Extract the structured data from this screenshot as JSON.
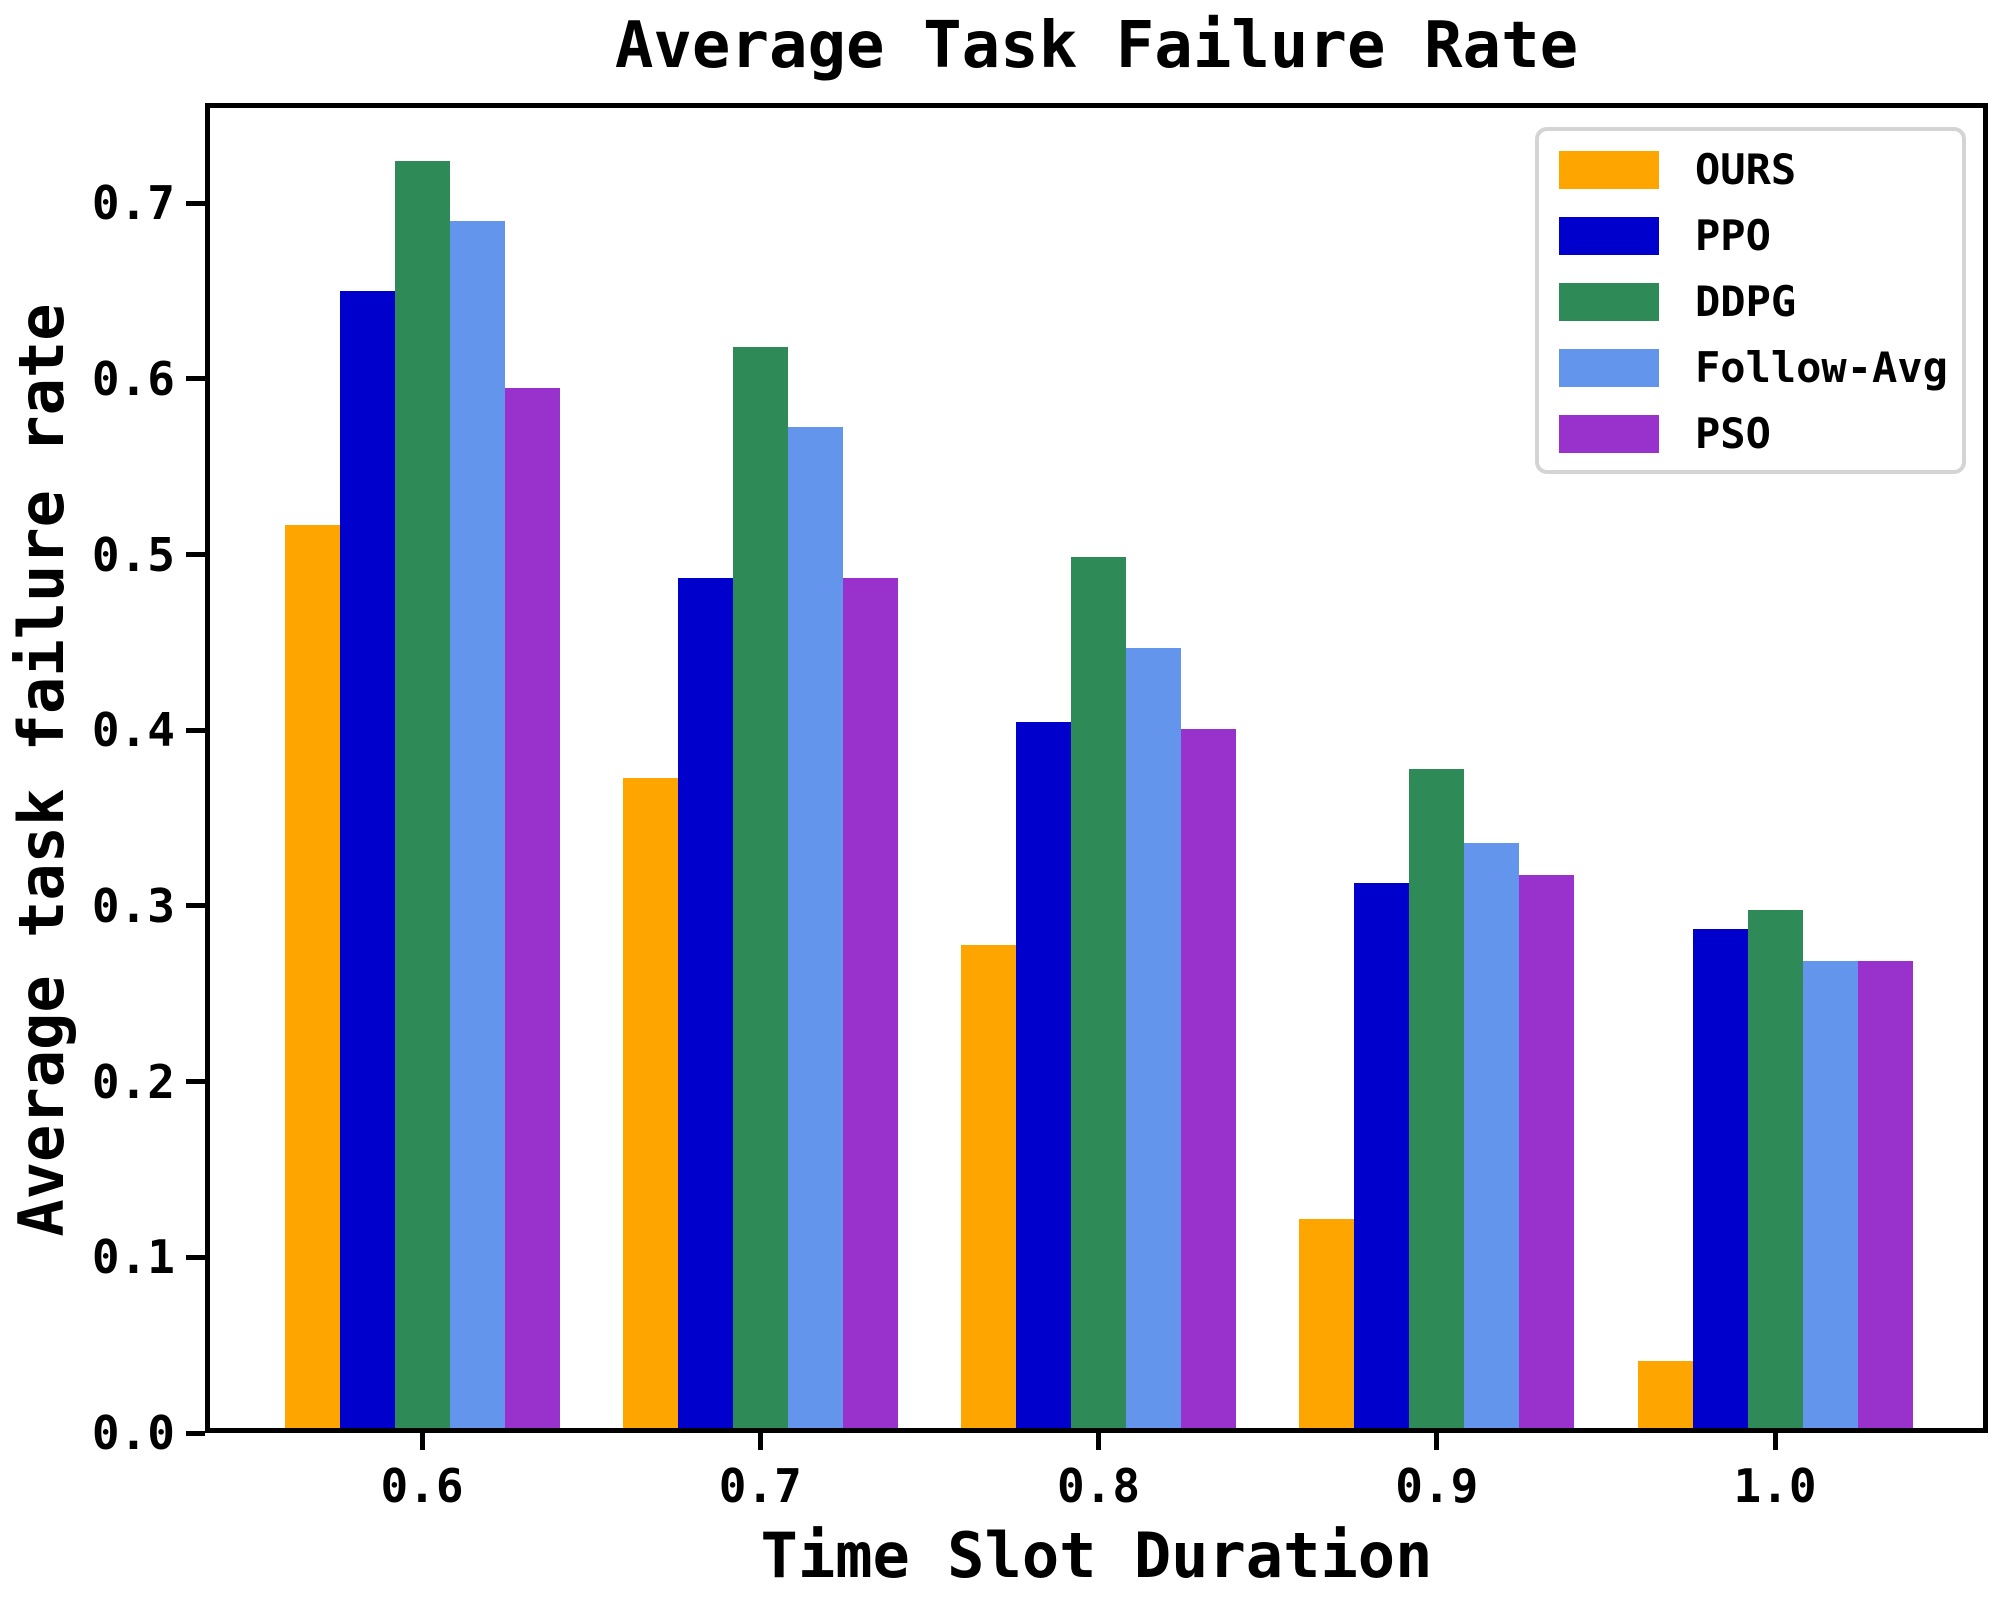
{
  "chart_data": {
    "type": "bar",
    "title": "Average Task Failure Rate",
    "xlabel": "Time Slot Duration",
    "ylabel": "Average task failure rate",
    "categories": [
      "0.6",
      "0.7",
      "0.8",
      "0.9",
      "1.0"
    ],
    "series": [
      {
        "name": "OURS",
        "color": "#FFA500",
        "values": [
          0.514,
          0.37,
          0.275,
          0.119,
          0.038
        ]
      },
      {
        "name": "PPO",
        "color": "#0000CD",
        "values": [
          0.647,
          0.484,
          0.402,
          0.31,
          0.284
        ]
      },
      {
        "name": "DDPG",
        "color": "#2E8B57",
        "values": [
          0.721,
          0.615,
          0.496,
          0.375,
          0.295
        ]
      },
      {
        "name": "Follow-Avg",
        "color": "#6495ED",
        "values": [
          0.687,
          0.57,
          0.444,
          0.333,
          0.266
        ]
      },
      {
        "name": "PSO",
        "color": "#9932CC",
        "values": [
          0.592,
          0.484,
          0.398,
          0.315,
          0.266
        ]
      }
    ],
    "y_ticks": [
      "0.0",
      "0.1",
      "0.2",
      "0.3",
      "0.4",
      "0.5",
      "0.6",
      "0.7"
    ],
    "ylim": [
      0,
      0.757
    ],
    "grid": false,
    "legend_position": "upper right",
    "axis_color": "#000000",
    "legend_border_color": "#d4d4d4",
    "background_color": "#ffffff"
  }
}
